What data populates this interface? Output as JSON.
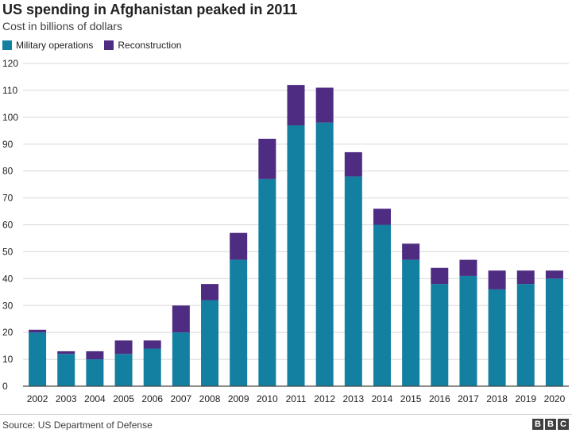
{
  "header": {
    "title": "US spending in Afghanistan peaked in 2011",
    "subtitle": "Cost in billions of dollars"
  },
  "footer": {
    "source": "Source: US Department of Defense",
    "logo_letters": [
      "B",
      "B",
      "C"
    ]
  },
  "colors": {
    "military": "#1380A1",
    "reconstruction": "#4E2C82",
    "grid": "#d8d8d8",
    "axis": "#444444"
  },
  "chart_data": {
    "type": "bar",
    "stacked": true,
    "title": "US spending in Afghanistan peaked in 2011",
    "subtitle": "Cost in billions of dollars",
    "xlabel": "",
    "ylabel": "",
    "ylim": [
      0,
      120
    ],
    "yticks": [
      0,
      10,
      20,
      30,
      40,
      50,
      60,
      70,
      80,
      90,
      100,
      110,
      120
    ],
    "grid": true,
    "legend_position": "top-left",
    "categories": [
      "2002",
      "2003",
      "2004",
      "2005",
      "2006",
      "2007",
      "2008",
      "2009",
      "2010",
      "2011",
      "2012",
      "2013",
      "2014",
      "2015",
      "2016",
      "2017",
      "2018",
      "2019",
      "2020"
    ],
    "series": [
      {
        "name": "Military operations",
        "values": [
          20,
          12,
          10,
          12,
          14,
          20,
          32,
          47,
          77,
          97,
          98,
          78,
          60,
          47,
          38,
          41,
          36,
          38,
          40
        ]
      },
      {
        "name": "Reconstruction",
        "values": [
          1,
          1,
          3,
          5,
          3,
          10,
          6,
          10,
          15,
          15,
          13,
          9,
          6,
          6,
          6,
          6,
          7,
          5,
          3
        ]
      }
    ]
  }
}
